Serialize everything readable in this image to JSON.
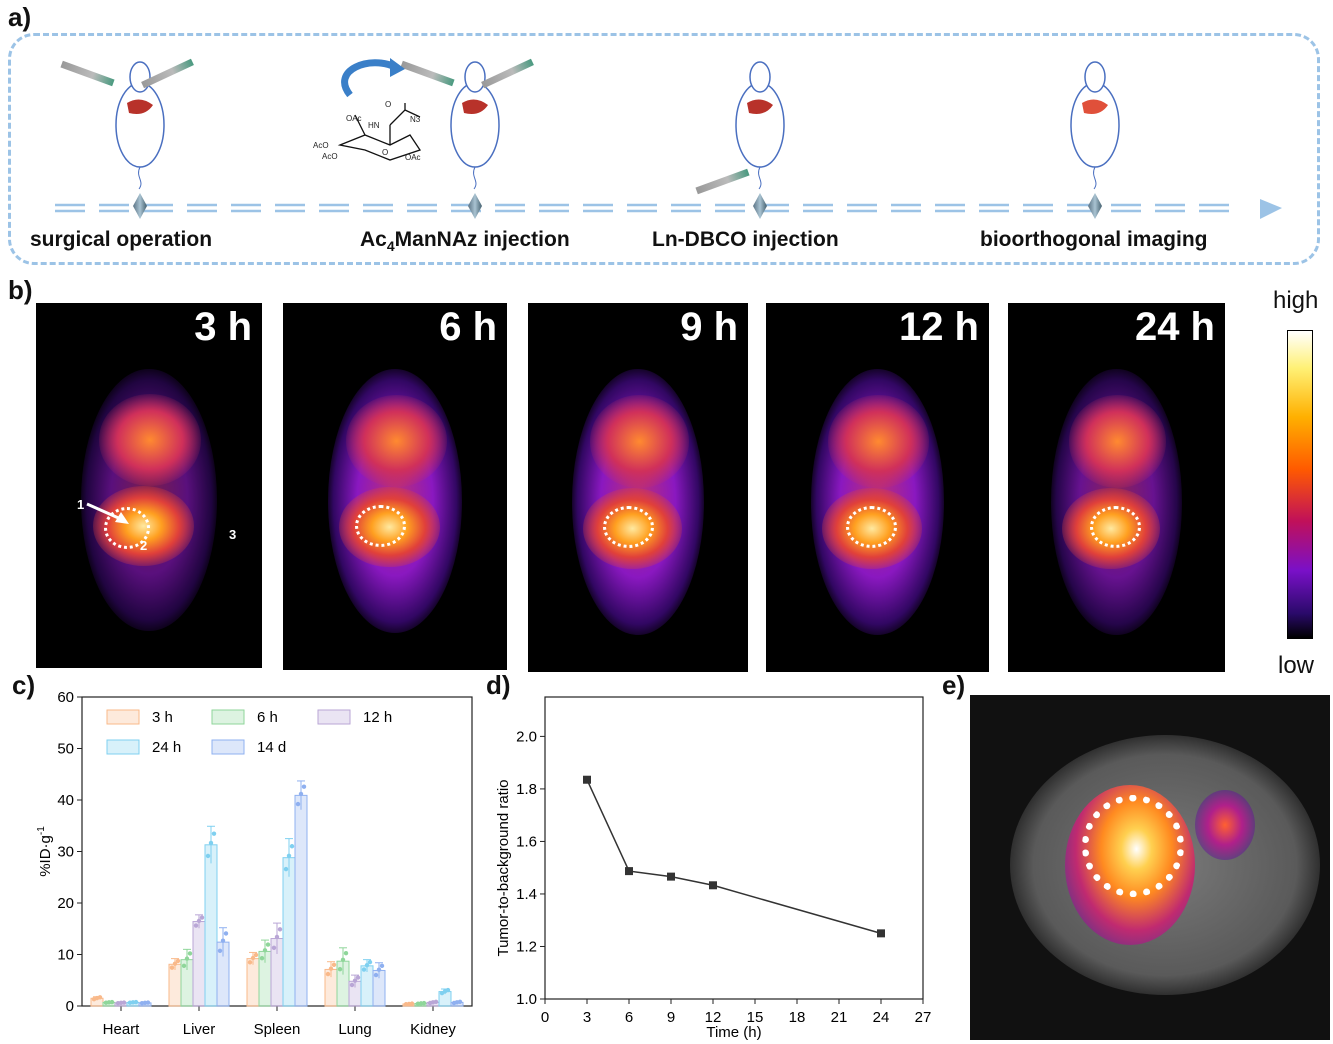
{
  "panel_labels": {
    "a": "a)",
    "b": "b)",
    "c": "c)",
    "d": "d)",
    "e": "e)"
  },
  "schematic": {
    "steps": [
      "surgical operation",
      "Ac4ManNAz injection",
      "Ln-DBCO injection",
      "bioorthogonal imaging"
    ],
    "step2_parts": {
      "pre": "Ac",
      "sub": "4",
      "post": "ManNAz injection"
    },
    "molecule_labels": [
      "OAc",
      "HN",
      "O",
      "N3",
      "AcO",
      "AcO",
      "O",
      "OAc"
    ]
  },
  "imaging": {
    "timepoints": [
      "3 h",
      "6 h",
      "9 h",
      "12 h",
      "24 h"
    ],
    "annotations": [
      "1",
      "2",
      "3"
    ],
    "colorbar": {
      "high": "high",
      "low": "low"
    }
  },
  "chart_data": [
    {
      "type": "bar",
      "title": "",
      "xlabel": "",
      "ylabel": "%ID·g-1",
      "ylabel_main": "%ID·g",
      "ylabel_sup": "-1",
      "ylim": [
        0,
        60
      ],
      "yticks": [
        0,
        10,
        20,
        30,
        40,
        50,
        60
      ],
      "categories": [
        "Heart",
        "Liver",
        "Spleen",
        "Lung",
        "Kidney"
      ],
      "legend_position": "top-left",
      "series": [
        {
          "name": "3 h",
          "color": "#f9b98a",
          "values": [
            1.5,
            8.1,
            9.2,
            7.1,
            0.4
          ],
          "errors": [
            0.3,
            1.1,
            1.2,
            1.5,
            0.1
          ]
        },
        {
          "name": "6 h",
          "color": "#8fd69a",
          "values": [
            0.7,
            9.0,
            10.6,
            8.7,
            0.5
          ],
          "errors": [
            0.1,
            2.0,
            2.2,
            2.6,
            0.1
          ]
        },
        {
          "name": "12 h",
          "color": "#b9a6d6",
          "values": [
            0.6,
            16.4,
            13.1,
            4.8,
            0.7
          ],
          "errors": [
            0.1,
            1.3,
            3.0,
            1.2,
            0.2
          ]
        },
        {
          "name": "24 h",
          "color": "#7fd0f0",
          "values": [
            0.7,
            31.3,
            28.8,
            7.8,
            2.8
          ],
          "errors": [
            0.1,
            3.6,
            3.7,
            1.2,
            0.5
          ]
        },
        {
          "name": "14 d",
          "color": "#8fb0f0",
          "values": [
            0.6,
            12.4,
            40.9,
            6.9,
            0.7
          ],
          "errors": [
            0.1,
            2.8,
            2.8,
            1.5,
            0.2
          ]
        }
      ]
    },
    {
      "type": "line",
      "title": "",
      "xlabel": "Time (h)",
      "ylabel": "Tumor-to-background ratio",
      "xlim": [
        0,
        27
      ],
      "ylim": [
        1.0,
        2.15
      ],
      "xticks": [
        0,
        3,
        6,
        9,
        12,
        15,
        18,
        21,
        24,
        27
      ],
      "yticks": [
        "1.0",
        "1.2",
        "1.4",
        "1.6",
        "1.8",
        "2.0"
      ],
      "x": [
        3,
        6,
        9,
        12,
        24
      ],
      "y": [
        1.835,
        1.487,
        1.466,
        1.433,
        1.25
      ],
      "color": "#333333"
    }
  ]
}
